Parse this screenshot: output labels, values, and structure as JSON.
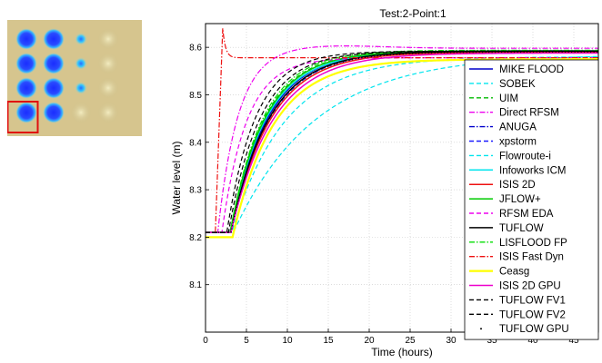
{
  "thumbnail": {
    "grid": [
      [
        "large",
        "large",
        "small",
        "none"
      ],
      [
        "large",
        "large",
        "small",
        "none"
      ],
      [
        "large",
        "large",
        "small",
        "none"
      ],
      [
        "large",
        "large",
        "none",
        "none"
      ]
    ],
    "highlight_cell": [
      3,
      0
    ],
    "highlight_color": "#e01010",
    "ground_color": "#d6c58e",
    "pond_color": "#1a2dff"
  },
  "chart_data": {
    "type": "line",
    "title": "Test:2-Point:1",
    "xlabel": "Time (hours)",
    "ylabel": "Water level (m)",
    "xlim": [
      0,
      48
    ],
    "ylim": [
      8.0,
      8.65
    ],
    "xticks": [
      0,
      5,
      10,
      15,
      20,
      25,
      30,
      35,
      40,
      45
    ],
    "yticks": [
      8.1,
      8.2,
      8.3,
      8.4,
      8.5,
      8.6
    ],
    "grid": true,
    "legend_position": "right",
    "series": [
      {
        "name": "MIKE FLOOD",
        "color": "#0000cc",
        "dash": "solid",
        "width": 1.5,
        "start": 8.21,
        "t0": 3.1,
        "final": 8.592,
        "tau": 4.5
      },
      {
        "name": "SOBEK",
        "color": "#00e5ee",
        "dash": "dashed",
        "width": 1.2,
        "start": 8.21,
        "t0": 3.4,
        "final": 8.585,
        "tau": 10.0
      },
      {
        "name": "UIM",
        "color": "#00bb00",
        "dash": "dashed",
        "width": 1.2,
        "start": 8.21,
        "t0": 3.0,
        "final": 8.592,
        "tau": 4.2
      },
      {
        "name": "Direct RFSM",
        "color": "#ee00ee",
        "dash": "dashdot",
        "width": 1.2,
        "start": 8.21,
        "t0": 1.5,
        "final": 8.598,
        "tau": 2.5,
        "overshoot": true
      },
      {
        "name": "ANUGA",
        "color": "#0000cc",
        "dash": "dashdot",
        "width": 1.2,
        "start": 8.21,
        "t0": 3.0,
        "final": 8.593,
        "tau": 4.6
      },
      {
        "name": "xpstorm",
        "color": "#1a1aff",
        "dash": "dashed",
        "width": 1.2,
        "start": 8.21,
        "t0": 3.1,
        "final": 8.592,
        "tau": 4.8
      },
      {
        "name": "Flowroute-i",
        "color": "#00e5ee",
        "dash": "dashed",
        "width": 1.2,
        "start": 8.21,
        "t0": 3.2,
        "final": 8.58,
        "tau": 6.5
      },
      {
        "name": "Infoworks ICM",
        "color": "#00e5ee",
        "dash": "solid",
        "width": 1.5,
        "start": 8.21,
        "t0": 3.0,
        "final": 8.59,
        "tau": 4.4
      },
      {
        "name": "ISIS 2D",
        "color": "#ee1111",
        "dash": "solid",
        "width": 1.5,
        "start": 8.21,
        "t0": 3.1,
        "final": 8.59,
        "tau": 4.9
      },
      {
        "name": "JFLOW+",
        "color": "#00cc00",
        "dash": "solid",
        "width": 1.5,
        "start": 8.21,
        "t0": 3.0,
        "final": 8.592,
        "tau": 4.3
      },
      {
        "name": "RFSM EDA",
        "color": "#ee00ee",
        "dash": "dashed",
        "width": 1.2,
        "start": 8.21,
        "t0": 2.0,
        "final": 8.578,
        "tau": 3.0
      },
      {
        "name": "TUFLOW",
        "color": "#000000",
        "dash": "solid",
        "width": 1.5,
        "start": 8.21,
        "t0": 3.1,
        "final": 8.592,
        "tau": 4.7
      },
      {
        "name": "LISFLOOD FP",
        "color": "#00dd00",
        "dash": "dashdot",
        "width": 1.2,
        "start": 8.21,
        "t0": 3.0,
        "final": 8.594,
        "tau": 4.1
      },
      {
        "name": "ISIS Fast Dyn",
        "color": "#ee1111",
        "dash": "dashdot",
        "width": 1.2,
        "start": 8.21,
        "t0": 1.2,
        "final": 8.578,
        "tau": 0.3,
        "spike": true
      },
      {
        "name": "Ceasg",
        "color": "#ffff00",
        "dash": "solid",
        "width": 2.2,
        "start": 8.2,
        "t0": 3.3,
        "final": 8.575,
        "tau": 5.0
      },
      {
        "name": "ISIS 2D GPU",
        "color": "#ee00cc",
        "dash": "solid",
        "width": 1.5,
        "start": 8.21,
        "t0": 3.1,
        "final": 8.588,
        "tau": 5.2
      },
      {
        "name": "TUFLOW FV1",
        "color": "#000000",
        "dash": "dashed",
        "width": 1.2,
        "start": 8.21,
        "t0": 2.6,
        "final": 8.592,
        "tau": 3.5
      },
      {
        "name": "TUFLOW FV2",
        "color": "#000000",
        "dash": "dashed",
        "width": 1.2,
        "start": 8.21,
        "t0": 2.8,
        "final": 8.592,
        "tau": 3.9
      },
      {
        "name": "TUFLOW GPU",
        "color": "#000000",
        "dash": "dotted",
        "width": 1.2,
        "start": 8.21,
        "t0": 3.1,
        "final": 8.59,
        "tau": 4.7
      }
    ]
  }
}
